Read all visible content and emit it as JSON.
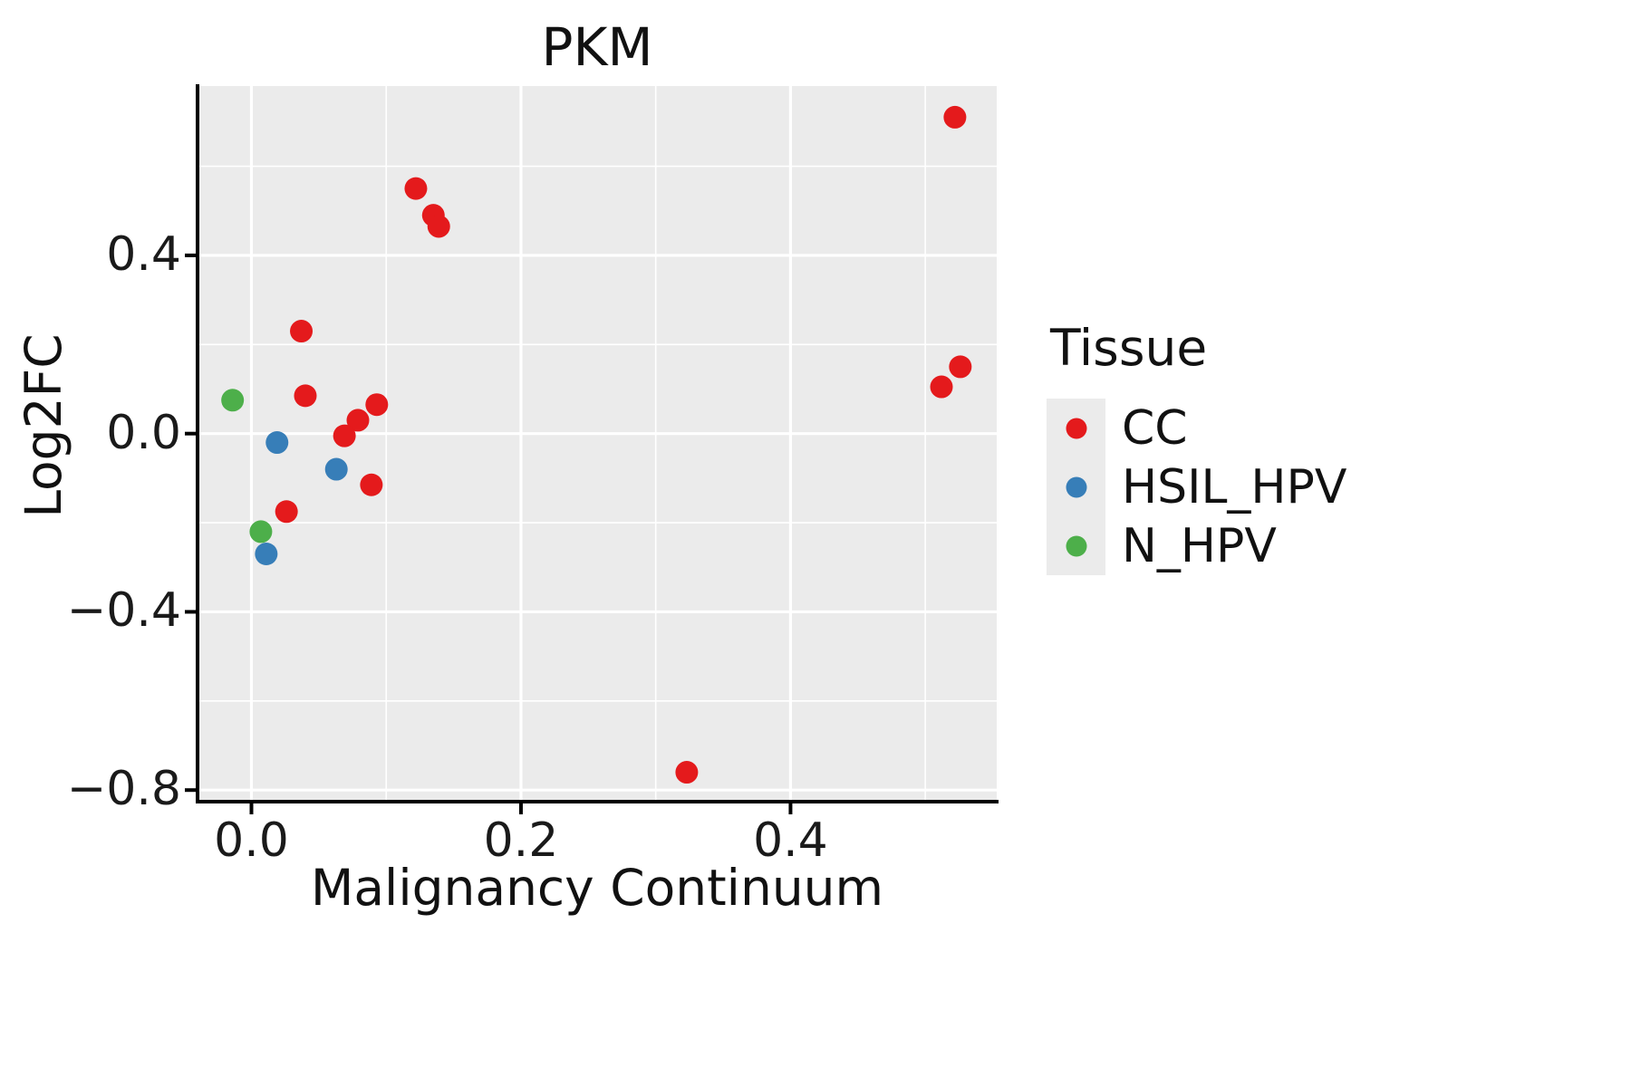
{
  "chart_data": {
    "type": "scatter",
    "title": "PKM",
    "xlabel": "Malignancy Continuum",
    "ylabel": "Log2FC",
    "xlim": [
      -0.04,
      0.553
    ],
    "ylim": [
      -0.826,
      0.78
    ],
    "grid": true,
    "panel_background": "#EBEBEB",
    "gridline_color": "#FFFFFF",
    "axis_color": "#000000",
    "x_major_ticks": [
      {
        "value": 0.0,
        "label": "0.0"
      },
      {
        "value": 0.2,
        "label": "0.2"
      },
      {
        "value": 0.4,
        "label": "0.4"
      }
    ],
    "y_major_ticks": [
      {
        "value": 0.4,
        "label": "0.4"
      },
      {
        "value": 0.0,
        "label": "0.0"
      },
      {
        "value": -0.4,
        "label": "−0.4"
      },
      {
        "value": -0.8,
        "label": "−0.8"
      }
    ],
    "x_minor_ticks": [
      0.1,
      0.3,
      0.5
    ],
    "y_minor_ticks": [
      0.6,
      0.2,
      -0.2,
      -0.6
    ],
    "legend": {
      "title": "Tissue",
      "position": "right"
    },
    "series": [
      {
        "name": "CC",
        "color": "#E41A1C",
        "points": [
          [
            0.522,
            0.71
          ],
          [
            0.122,
            0.55
          ],
          [
            0.135,
            0.49
          ],
          [
            0.139,
            0.465
          ],
          [
            0.037,
            0.23
          ],
          [
            0.04,
            0.085
          ],
          [
            0.093,
            0.065
          ],
          [
            0.079,
            0.03
          ],
          [
            0.069,
            -0.005
          ],
          [
            0.089,
            -0.115
          ],
          [
            0.026,
            -0.175
          ],
          [
            0.512,
            0.105
          ],
          [
            0.526,
            0.15
          ],
          [
            0.323,
            -0.76
          ]
        ]
      },
      {
        "name": "HSIL_HPV",
        "color": "#377EB8",
        "points": [
          [
            0.019,
            -0.02
          ],
          [
            0.063,
            -0.08
          ],
          [
            0.011,
            -0.27
          ]
        ]
      },
      {
        "name": "N_HPV",
        "color": "#4DAF4A",
        "points": [
          [
            -0.014,
            0.075
          ],
          [
            0.007,
            -0.22
          ]
        ]
      }
    ]
  }
}
